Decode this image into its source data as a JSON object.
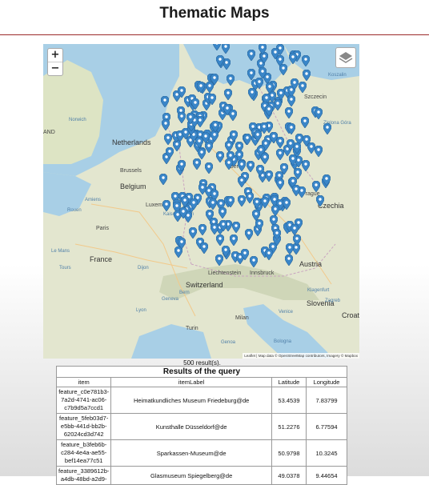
{
  "page": {
    "title": "Thematic Maps"
  },
  "map": {
    "zoom_in": "+",
    "zoom_out": "−",
    "attribution": "Leaflet | Map data © OpenStreetMap contributors, Imagery © Mapbox",
    "labels": {
      "netherlands": "Netherlands",
      "belgium": "Belgium",
      "france": "France",
      "switzerland": "Switzerland",
      "austria": "Austria",
      "czechia": "Czechia",
      "slovenia": "Slovenia",
      "croatia": "Croati",
      "liechtenstein": "Liechtenstein",
      "brussels": "Brussels",
      "luxembourg": "Luxemb",
      "paris": "Paris",
      "prague": "Prague",
      "szczecin": "Szczecin",
      "berlin": "Ber",
      "milan": "Milan",
      "turin": "Turin",
      "innsbruck": "Innsbruck",
      "land": "AND",
      "norwich": "Norwich",
      "amiens": "Amiens",
      "rouen": "Rouen",
      "le_mans": "Le Mans",
      "tours": "Tours",
      "dijon": "Dijon",
      "lyon": "Lyon",
      "bologna": "Bologna",
      "genoa": "Genoa",
      "kaiserslautern": "Kaiserslautern",
      "bern": "Bern",
      "geneva": "Geneva",
      "venice": "Venice",
      "zagreb": "Zagreb",
      "klagenfurt": "Klagenfurt",
      "koszalin": "Koszalin",
      "zielona": "Zielona Góra"
    }
  },
  "results": {
    "count_text": "500 result(s).",
    "caption": "Results of the query",
    "columns": [
      "item",
      "itemLabel",
      "Latitude",
      "Longitude"
    ],
    "rows": [
      {
        "item": "feature_c0e781b3-7a2d-4741-ac06-c7b9d5a7ccd1",
        "label": "Heimatkundliches Museum Friedeburg@de",
        "lat": "53.4539",
        "lon": "7.83799"
      },
      {
        "item": "feature_5feb03d7-e5bb-441d-bb2b-62024cd3d742",
        "label": "Kunsthalle Düsseldorf@de",
        "lat": "51.2276",
        "lon": "6.77594"
      },
      {
        "item": "feature_b3feb6b-c284-4e4a-ae55-bef14ea77c51",
        "label": "Sparkassen-Museum@de",
        "lat": "50.9798",
        "lon": "10.3245"
      },
      {
        "item": "feature_3389612b-a4db-48bd-a2d9-",
        "label": "Glasmuseum Spiegelberg@de",
        "lat": "49.0378",
        "lon": "9.44654"
      }
    ]
  }
}
